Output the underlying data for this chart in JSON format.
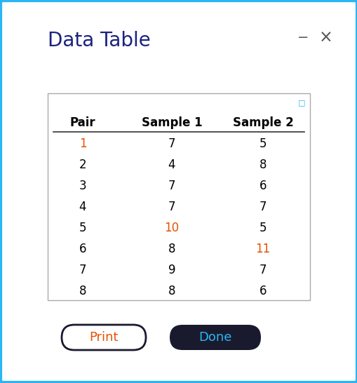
{
  "title": "Data Table",
  "title_color": "#1a237e",
  "title_fontsize": 20,
  "title_bold": false,
  "bg_color": "#ffffff",
  "border_color": "#29b6f6",
  "window_bg": "#ffffff",
  "headers": [
    "Pair",
    "Sample 1",
    "Sample 2"
  ],
  "pairs": [
    1,
    2,
    3,
    4,
    5,
    6,
    7,
    8
  ],
  "sample1": [
    7,
    4,
    7,
    7,
    10,
    8,
    9,
    8
  ],
  "sample2": [
    5,
    8,
    6,
    7,
    5,
    11,
    7,
    6
  ],
  "pair_colors": [
    "#e65100",
    "#000000",
    "#000000",
    "#000000",
    "#000000",
    "#000000",
    "#000000",
    "#000000"
  ],
  "sample1_colors": [
    "#000000",
    "#000000",
    "#000000",
    "#000000",
    "#e65100",
    "#000000",
    "#000000",
    "#000000"
  ],
  "sample2_colors": [
    "#000000",
    "#000000",
    "#000000",
    "#000000",
    "#000000",
    "#e65100",
    "#000000",
    "#000000"
  ],
  "header_color": "#000000",
  "header_fontsize": 12,
  "data_fontsize": 12,
  "print_btn_bg": "#ffffff",
  "print_btn_border": "#1a1a2e",
  "print_btn_text": "#e65100",
  "done_btn_bg": "#1a1a2e",
  "done_btn_text": "#29b6f6",
  "minimize_color": "#555555",
  "x_color": "#555555",
  "table_border_color": "#aaaaaa",
  "header_line_color": "#333333",
  "icon_color": "#29b6f6"
}
